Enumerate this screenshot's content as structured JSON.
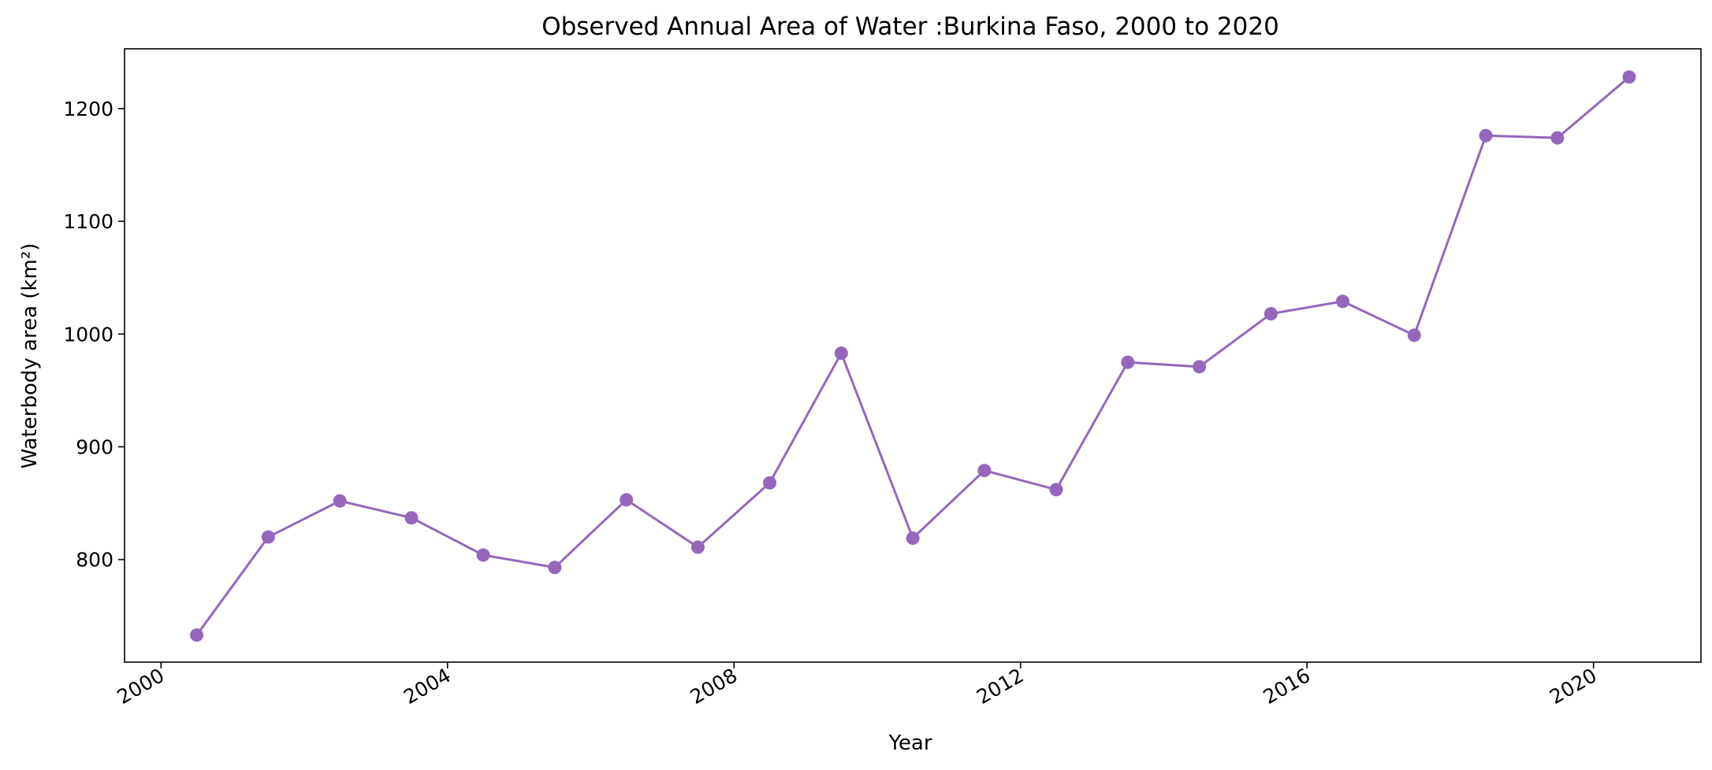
{
  "chart_data": {
    "type": "line",
    "title": "Observed Annual Area of Water :Burkina Faso, 2000 to 2020",
    "xlabel": "Year",
    "ylabel": "Waterbody area (km²)",
    "x_type": "date",
    "x_ticks": [
      "2000",
      "2004",
      "2008",
      "2012",
      "2016",
      "2020"
    ],
    "y_ticks": [
      800,
      900,
      1000,
      1100,
      1200
    ],
    "xlim": [
      "1999-06-29",
      "2021-07-02"
    ],
    "ylim": [
      709,
      1253
    ],
    "grid": false,
    "color": "#9467bd",
    "marker": "circle",
    "series": [
      {
        "x": [
          "2000-07-01",
          "2001-07-01",
          "2002-07-01",
          "2003-07-01",
          "2004-07-01",
          "2005-07-01",
          "2006-07-01",
          "2007-07-01",
          "2008-07-01",
          "2009-07-01",
          "2010-07-01",
          "2011-07-01",
          "2012-07-01",
          "2013-07-01",
          "2014-07-01",
          "2015-07-01",
          "2016-07-01",
          "2017-07-01",
          "2018-07-01",
          "2019-07-01",
          "2020-07-01"
        ],
        "values": [
          733,
          820,
          852,
          837,
          804,
          793,
          853,
          811,
          868,
          983,
          819,
          879,
          862,
          975,
          971,
          1018,
          1029,
          999,
          1176,
          1174,
          1228
        ]
      }
    ]
  }
}
